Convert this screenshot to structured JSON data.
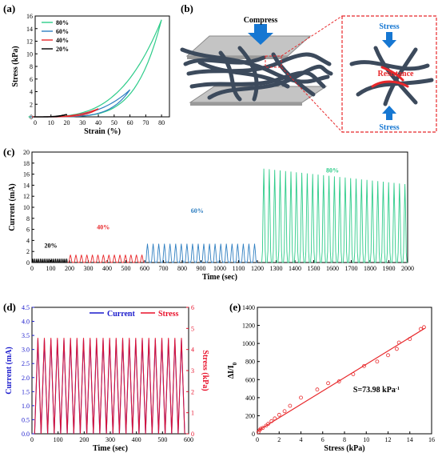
{
  "panels": {
    "a": {
      "label": "(a)"
    },
    "b": {
      "label": "(b)",
      "compress": "Compress",
      "stress_top": "Stress",
      "stress_bottom": "Stress",
      "resistance": "Resistance"
    },
    "c": {
      "label": "(c)"
    },
    "d": {
      "label": "(d)"
    },
    "e": {
      "label": "(e)"
    }
  },
  "colors": {
    "c20": "#000000",
    "c40": "#e8282b",
    "c60": "#2f7fc1",
    "c80": "#2ecc8a",
    "current": "#1a1acc",
    "stress": "#e8102a",
    "fit": "#e8282b",
    "blue": "#1677d2",
    "fiber": "#3c4a5c"
  },
  "chart_data": [
    {
      "id": "a",
      "type": "line",
      "xlabel": "Strain (%)",
      "ylabel": "Stress (kPa)",
      "xlim": [
        0,
        85
      ],
      "ylim": [
        0,
        16
      ],
      "xticks": [
        0,
        10,
        20,
        30,
        40,
        50,
        60,
        70,
        80
      ],
      "yticks": [
        0,
        2,
        4,
        6,
        8,
        10,
        12,
        14,
        16
      ],
      "legend": "top-left",
      "series": [
        {
          "name": "80%",
          "color": "#2ecc8a",
          "max_strain": 80,
          "max_stress": 15.4
        },
        {
          "name": "60%",
          "color": "#2f7fc1",
          "max_strain": 60,
          "max_stress": 4.3
        },
        {
          "name": "40%",
          "color": "#e8282b",
          "max_strain": 40,
          "max_stress": 1.3
        },
        {
          "name": "20%",
          "color": "#000000",
          "max_strain": 20,
          "max_stress": 0.4
        }
      ]
    },
    {
      "id": "c",
      "type": "line",
      "xlabel": "Time (sec)",
      "ylabel": "Current (mA)",
      "xlim": [
        0,
        2000
      ],
      "ylim": [
        0,
        20
      ],
      "xticks": [
        0,
        100,
        200,
        300,
        400,
        500,
        600,
        700,
        800,
        900,
        1000,
        1100,
        1200,
        1300,
        1400,
        1500,
        1600,
        1700,
        1800,
        1900,
        2000
      ],
      "yticks": [
        0,
        2,
        4,
        6,
        8,
        10,
        12,
        14,
        16,
        18,
        20
      ],
      "segments": [
        {
          "name": "20%",
          "color": "#000000",
          "start": 0,
          "end": 190,
          "cycles": 19,
          "peak": 0.7
        },
        {
          "name": "40%",
          "color": "#e8282b",
          "start": 190,
          "end": 600,
          "cycles": 14,
          "peak": 1.4
        },
        {
          "name": "60%",
          "color": "#2f7fc1",
          "start": 600,
          "end": 1200,
          "cycles": 20,
          "peak": 3.4
        },
        {
          "name": "80%",
          "color": "#2ecc8a",
          "start": 1220,
          "end": 2000,
          "cycles": 27,
          "peak": 17.0,
          "last_peak": 14.2
        }
      ],
      "segment_labels": [
        {
          "text": "20%",
          "x": 100,
          "y": 2.7
        },
        {
          "text": "40%",
          "x": 380,
          "y": 6.0
        },
        {
          "text": "60%",
          "x": 880,
          "y": 9.0
        },
        {
          "text": "80%",
          "x": 1600,
          "y": 16.3
        }
      ]
    },
    {
      "id": "d",
      "type": "line",
      "xlabel": "Time (sec)",
      "ylabel": "Current (mA)",
      "y2label": "Stress (kPa)",
      "xlim": [
        0,
        600
      ],
      "ylim": [
        0,
        4.5
      ],
      "y2lim": [
        0,
        6
      ],
      "xticks": [
        0,
        100,
        200,
        300,
        400,
        500,
        600
      ],
      "yticks": [
        0,
        0.5,
        1.0,
        1.5,
        2.0,
        2.5,
        3.0,
        3.5,
        4.0,
        4.5
      ],
      "y2ticks": [
        0,
        1,
        2,
        3,
        4,
        5,
        6
      ],
      "legend": "top-right",
      "series": [
        {
          "name": "Current",
          "color": "#1a1acc",
          "cycles": 23,
          "peak": 3.35,
          "axis": "left"
        },
        {
          "name": "Stress",
          "color": "#e8102a",
          "cycles": 23,
          "peak": 4.55,
          "axis": "right"
        }
      ],
      "x_start": 10,
      "x_end": 585
    },
    {
      "id": "e",
      "type": "scatter",
      "xlabel": "Stress (kPa)",
      "ylabel": "ΔI/I0",
      "ylabel_main": "ΔI/I",
      "ylabel_sub": "0",
      "xlim": [
        0,
        16
      ],
      "ylim": [
        0,
        1400
      ],
      "xticks": [
        0,
        2,
        4,
        6,
        8,
        10,
        12,
        14,
        16
      ],
      "yticks": [
        0,
        200,
        400,
        600,
        800,
        1000,
        1200,
        1400
      ],
      "annotation": "S=73.98 kPa",
      "annotation_sup": "-1",
      "x": [
        0.1,
        0.2,
        0.3,
        0.5,
        0.8,
        1.0,
        1.3,
        1.6,
        2.0,
        2.5,
        3.0,
        4.0,
        5.5,
        6.5,
        7.5,
        8.8,
        9.8,
        11.0,
        12.0,
        12.8,
        13.0,
        14.0,
        15.0,
        15.3
      ],
      "y": [
        20,
        40,
        55,
        65,
        90,
        110,
        140,
        170,
        210,
        250,
        310,
        400,
        490,
        560,
        580,
        660,
        750,
        800,
        870,
        940,
        1010,
        1050,
        1160,
        1180
      ],
      "fit": {
        "slope": 73.98,
        "intercept": 30,
        "x0": 0,
        "x1": 15.4
      }
    }
  ]
}
